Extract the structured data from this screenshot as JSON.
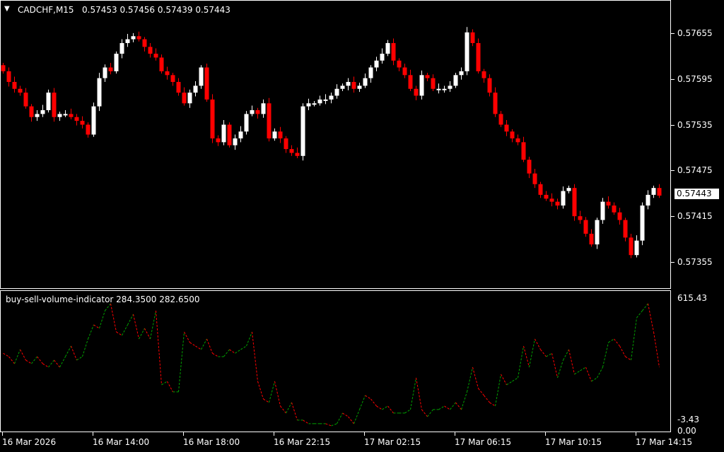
{
  "header": {
    "symbol": "CADCHF,M15",
    "ohlc": "0.57453 0.57456 0.57439 0.57443",
    "menu_icon": "triangle-down-icon"
  },
  "indicator": {
    "label": "buy-sell-volume-indicator 284.3500 282.6500",
    "max_label": "615.43",
    "min_label": "-3.43",
    "zero_label": "0.00"
  },
  "colors": {
    "bull": "#ffffff",
    "bear": "#ff0000",
    "background": "#000000",
    "ind_up": "#00a000",
    "ind_down": "#ff0000"
  },
  "chart_data": [
    {
      "type": "candlestick",
      "title": "CADCHF,M15",
      "ylim": [
        0.57325,
        0.57695
      ],
      "price_ticks": [
        "0.57655",
        "0.57595",
        "0.57535",
        "0.57475",
        "0.57415",
        "0.57355"
      ],
      "current_price": "0.57443",
      "time_ticks": [
        "16 Mar 2026",
        "16 Mar 14:00",
        "16 Mar 18:00",
        "16 Mar 22:15",
        "17 Mar 02:15",
        "17 Mar 06:15",
        "17 Mar 10:15",
        "17 Mar 14:15"
      ],
      "closes": [
        0.57606,
        0.57592,
        0.57583,
        0.57578,
        0.5756,
        0.57546,
        0.5755,
        0.57555,
        0.57578,
        0.57546,
        0.5755,
        0.5755,
        0.57546,
        0.57541,
        0.57536,
        0.57523,
        0.5756,
        0.57597,
        0.57611,
        0.57606,
        0.57629,
        0.57643,
        0.57648,
        0.57652,
        0.57648,
        0.57638,
        0.57629,
        0.57624,
        0.57606,
        0.57601,
        0.57592,
        0.57578,
        0.57564,
        0.57578,
        0.57587,
        0.57611,
        0.57569,
        0.57518,
        0.57513,
        0.57536,
        0.57509,
        0.57518,
        0.57527,
        0.5755,
        0.57555,
        0.5755,
        0.57564,
        0.57518,
        0.57527,
        0.57518,
        0.57504,
        0.57499,
        0.57495,
        0.5756,
        0.57564,
        0.57564,
        0.57569,
        0.57569,
        0.57574,
        0.57583,
        0.57587,
        0.57592,
        0.57583,
        0.57587,
        0.57597,
        0.57611,
        0.5762,
        0.57629,
        0.57643,
        0.5762,
        0.57611,
        0.57601,
        0.57583,
        0.57574,
        0.57601,
        0.57597,
        0.57583,
        0.57583,
        0.57583,
        0.57587,
        0.57601,
        0.57606,
        0.57657,
        0.57643,
        0.57606,
        0.57597,
        0.57578,
        0.5755,
        0.57536,
        0.57527,
        0.57518,
        0.57513,
        0.5749,
        0.57472,
        0.57458,
        0.57444,
        0.57439,
        0.57435,
        0.5743,
        0.57449,
        0.57453,
        0.57416,
        0.57411,
        0.57393,
        0.57379,
        0.57411,
        0.57435,
        0.5743,
        0.57421,
        0.57411,
        0.57388,
        0.57365,
        0.57384,
        0.5743,
        0.57444,
        0.57453,
        0.57443
      ]
    },
    {
      "type": "line",
      "title": "buy-sell-volume-indicator",
      "ylim": [
        -3.43,
        615.43
      ],
      "values": [
        346,
        330,
        296,
        364,
        313,
        296,
        330,
        296,
        279,
        313,
        279,
        330,
        381,
        313,
        330,
        415,
        483,
        466,
        551,
        585,
        449,
        432,
        483,
        534,
        415,
        466,
        415,
        551,
        194,
        211,
        160,
        160,
        449,
        398,
        381,
        364,
        415,
        346,
        330,
        330,
        364,
        346,
        364,
        381,
        449,
        211,
        126,
        109,
        211,
        92,
        58,
        109,
        24,
        24,
        7,
        7,
        7,
        7,
        -3,
        7,
        58,
        41,
        7,
        75,
        143,
        126,
        92,
        75,
        92,
        58,
        58,
        58,
        75,
        228,
        75,
        41,
        75,
        75,
        92,
        75,
        109,
        75,
        160,
        279,
        177,
        143,
        109,
        92,
        245,
        194,
        211,
        228,
        381,
        279,
        415,
        364,
        330,
        346,
        228,
        313,
        364,
        245,
        262,
        279,
        211,
        228,
        279,
        398,
        415,
        381,
        330,
        313,
        517,
        551,
        585,
        449,
        279
      ]
    }
  ]
}
